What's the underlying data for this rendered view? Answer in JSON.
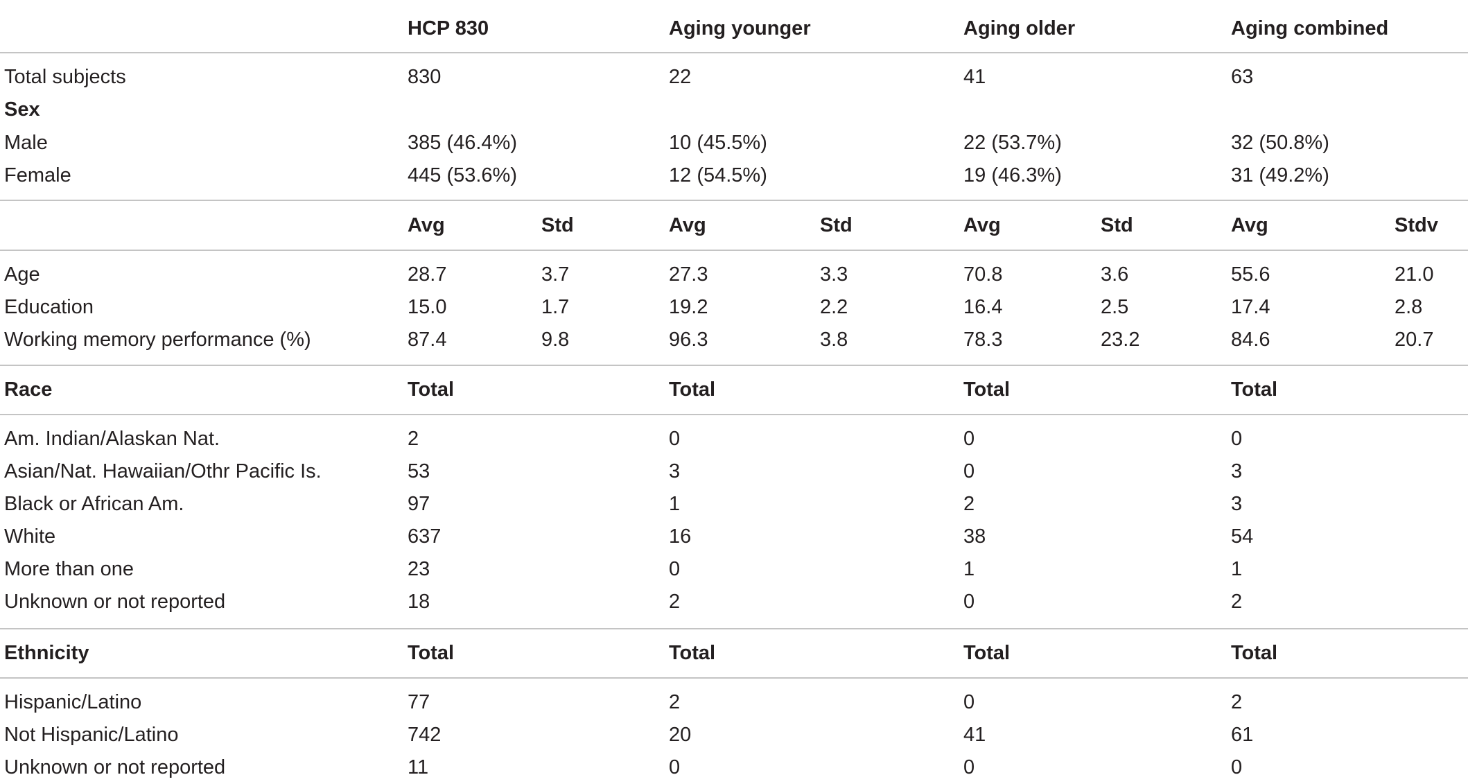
{
  "table": {
    "column_headers": [
      "HCP 830",
      "Aging younger",
      "Aging older",
      "Aging combined"
    ],
    "counts": [
      {
        "label": "Total subjects",
        "values": [
          "830",
          "22",
          "41",
          "63"
        ]
      }
    ],
    "sex": {
      "label": "Sex",
      "rows": [
        {
          "label": "Male",
          "values": [
            "385 (46.4%)",
            "10 (45.5%)",
            "22 (53.7%)",
            "32 (50.8%)"
          ]
        },
        {
          "label": "Female",
          "values": [
            "445 (53.6%)",
            "12 (54.5%)",
            "19 (46.3%)",
            "31 (49.2%)"
          ]
        }
      ]
    },
    "stats": {
      "subheaders": [
        "Avg",
        "Std",
        "Avg",
        "Std",
        "Avg",
        "Std",
        "Avg",
        "Stdv"
      ],
      "rows": [
        {
          "label": "Age",
          "values": [
            "28.7",
            "3.7",
            "27.3",
            "3.3",
            "70.8",
            "3.6",
            "55.6",
            "21.0"
          ]
        },
        {
          "label": "Education",
          "values": [
            "15.0",
            "1.7",
            "19.2",
            "2.2",
            "16.4",
            "2.5",
            "17.4",
            "2.8"
          ]
        },
        {
          "label": "Working memory performance (%)",
          "values": [
            "87.4",
            "9.8",
            "96.3",
            "3.8",
            "78.3",
            "23.2",
            "84.6",
            "20.7"
          ]
        }
      ]
    },
    "race": {
      "label": "Race",
      "subheaders": [
        "Total",
        "Total",
        "Total",
        "Total"
      ],
      "rows": [
        {
          "label": "Am. Indian/Alaskan Nat.",
          "values": [
            "2",
            "0",
            "0",
            "0"
          ]
        },
        {
          "label": "Asian/Nat. Hawaiian/Othr Pacific Is.",
          "values": [
            "53",
            "3",
            "0",
            "3"
          ]
        },
        {
          "label": "Black or African Am.",
          "values": [
            "97",
            "1",
            "2",
            "3"
          ]
        },
        {
          "label": "White",
          "values": [
            "637",
            "16",
            "38",
            "54"
          ]
        },
        {
          "label": "More than one",
          "values": [
            "23",
            "0",
            "1",
            "1"
          ]
        },
        {
          "label": "Unknown or not reported",
          "values": [
            "18",
            "2",
            "0",
            "2"
          ]
        }
      ]
    },
    "ethnicity": {
      "label": "Ethnicity",
      "subheaders": [
        "Total",
        "Total",
        "Total",
        "Total"
      ],
      "rows": [
        {
          "label": "Hispanic/Latino",
          "values": [
            "77",
            "2",
            "0",
            "2"
          ]
        },
        {
          "label": "Not Hispanic/Latino",
          "values": [
            "742",
            "20",
            "41",
            "61"
          ]
        },
        {
          "label": "Unknown or not reported",
          "values": [
            "11",
            "0",
            "0",
            "0"
          ]
        }
      ]
    }
  }
}
